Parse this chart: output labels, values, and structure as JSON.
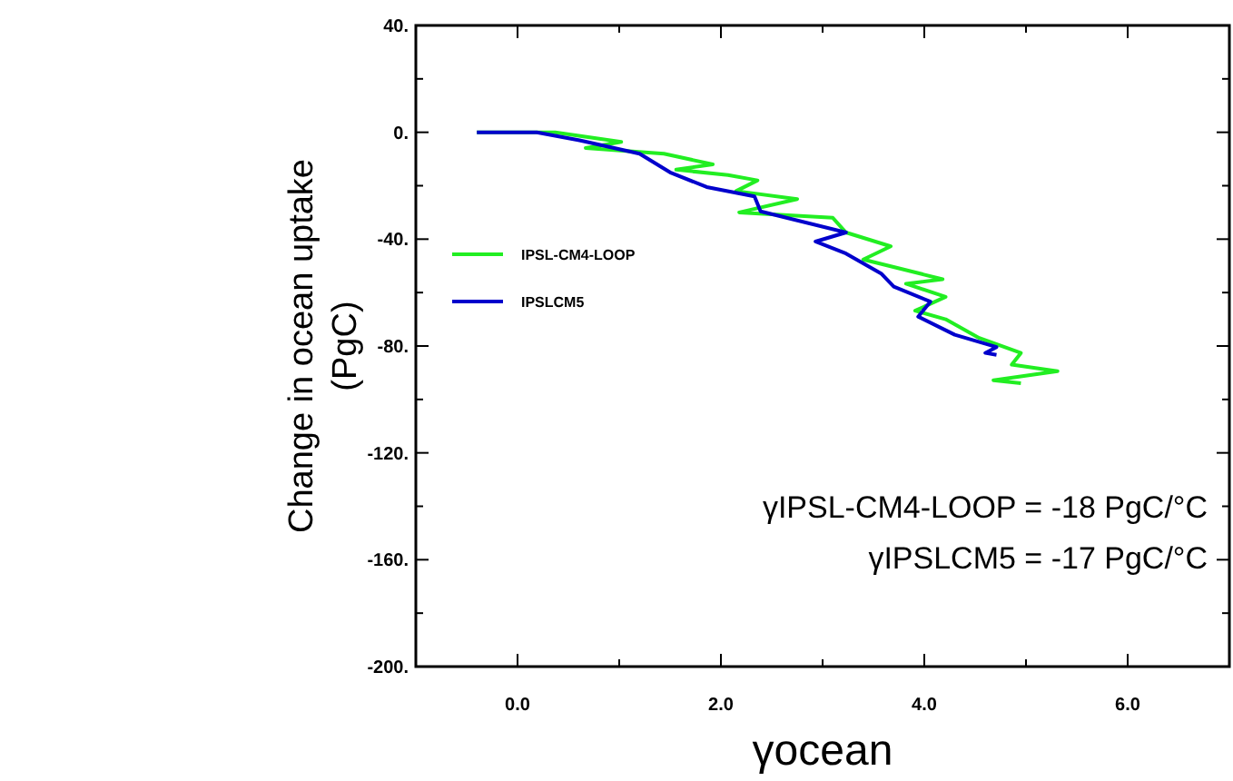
{
  "chart_data": {
    "type": "line",
    "xlabel": "γocean",
    "ylabel": "Change in ocean uptake (PgC)",
    "xlim": [
      -1,
      7
    ],
    "ylim": [
      -200,
      40
    ],
    "xticks": [
      {
        "value": -1,
        "label": null
      },
      {
        "value": 0,
        "label": "0.0"
      },
      {
        "value": 1,
        "label": null
      },
      {
        "value": 2,
        "label": "2.0"
      },
      {
        "value": 3,
        "label": null
      },
      {
        "value": 4,
        "label": "4.0"
      },
      {
        "value": 5,
        "label": null
      },
      {
        "value": 6,
        "label": "6.0"
      },
      {
        "value": 7,
        "label": null
      }
    ],
    "yticks": [
      {
        "value": -200,
        "label": "-200."
      },
      {
        "value": -180,
        "label": null
      },
      {
        "value": -160,
        "label": "-160."
      },
      {
        "value": -140,
        "label": null
      },
      {
        "value": -120,
        "label": "-120."
      },
      {
        "value": -100,
        "label": null
      },
      {
        "value": -80,
        "label": "-80."
      },
      {
        "value": -60,
        "label": null
      },
      {
        "value": -40,
        "label": "-40."
      },
      {
        "value": -20,
        "label": null
      },
      {
        "value": 0,
        "label": "0."
      },
      {
        "value": 20,
        "label": null
      },
      {
        "value": 40,
        "label": "40."
      }
    ],
    "grid": false,
    "legend": "left",
    "line_style": "solid",
    "marker": "none",
    "series": [
      {
        "name": "IPSL-CM4-LOOP",
        "color": "#22ee22",
        "x": [
          -0.4,
          0.37,
          1.02,
          0.67,
          1.44,
          1.92,
          1.56,
          2.07,
          2.36,
          2.15,
          2.75,
          2.18,
          3.1,
          3.23,
          3.67,
          3.4,
          4.18,
          3.82,
          4.21,
          3.91,
          4.21,
          4.54,
          4.95,
          4.86,
          5.31,
          4.68,
          4.95
        ],
        "values": [
          0,
          0,
          -3.6,
          -5.9,
          -8,
          -12,
          -14,
          -16,
          -18,
          -22,
          -25,
          -30,
          -32,
          -37.5,
          -42.7,
          -47.6,
          -55,
          -56.7,
          -61.6,
          -66.8,
          -70,
          -77,
          -82.6,
          -87,
          -89.4,
          -92.8,
          -93.9
        ]
      },
      {
        "name": "IPSLCM5",
        "color": "#0000cc",
        "x": [
          -0.4,
          0.19,
          0.61,
          1.2,
          1.5,
          1.86,
          2.33,
          2.39,
          3.23,
          2.93,
          3.23,
          3.58,
          3.7,
          4.06,
          3.94,
          4.3,
          4.71,
          4.6,
          4.71
        ],
        "values": [
          0,
          0,
          -3,
          -8,
          -15,
          -20.5,
          -24,
          -29.6,
          -37.5,
          -40.9,
          -45.4,
          -53,
          -57.8,
          -63.4,
          -69,
          -75.8,
          -80.4,
          -82.6,
          -83.3
        ]
      }
    ],
    "annotations": [
      "γIPSL-CM4-LOOP = -18 PgC/°C",
      "γIPSLCM5 = -17 PgC/°C"
    ]
  }
}
